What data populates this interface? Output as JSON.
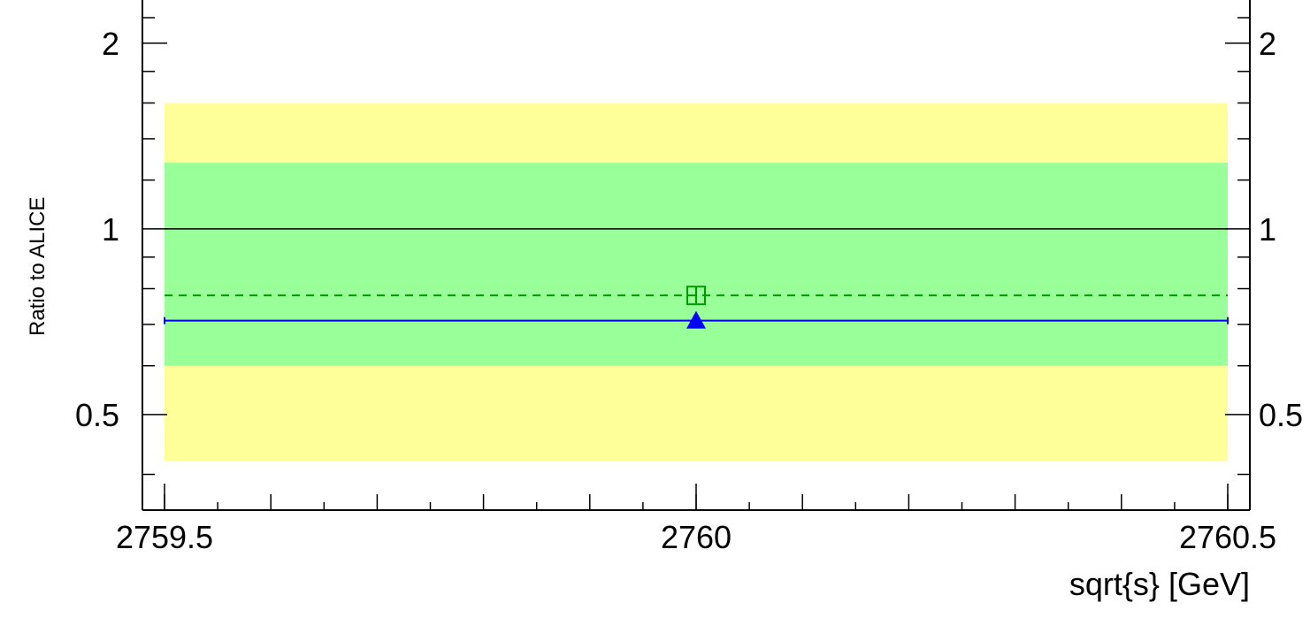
{
  "chart_data": {
    "type": "scatter",
    "title": "",
    "xlabel": "sqrt{s} [GeV]",
    "ylabel": "Ratio to ALICE",
    "xlim": [
      2759.5,
      2760.5
    ],
    "ylim": [
      0.35,
      2.35
    ],
    "y_scale": "log",
    "grid": false,
    "x_ticks": [
      {
        "value": 2759.5,
        "label": "2759.5"
      },
      {
        "value": 2760,
        "label": "2760"
      },
      {
        "value": 2760.5,
        "label": "2760.5"
      }
    ],
    "y_ticks": [
      {
        "value": 0.5,
        "label": "0.5"
      },
      {
        "value": 1,
        "label": "1"
      },
      {
        "value": 2,
        "label": "2"
      }
    ],
    "bands": [
      {
        "y_low": 0.42,
        "y_high": 1.6,
        "color": "#ffff99"
      },
      {
        "y_low": 0.6,
        "y_high": 1.28,
        "color": "#99ff99"
      }
    ],
    "reference_line": {
      "y": 1.0,
      "color": "#000000"
    },
    "series": [
      {
        "x": 2760,
        "y": 0.78,
        "x_err": 0.5,
        "marker": "open-square-cross",
        "line": "dashed",
        "color": "#009900"
      },
      {
        "x": 2760,
        "y": 0.71,
        "x_err": 0.5,
        "marker": "filled-triangle",
        "line": "solid",
        "color": "#0000ff"
      }
    ]
  }
}
